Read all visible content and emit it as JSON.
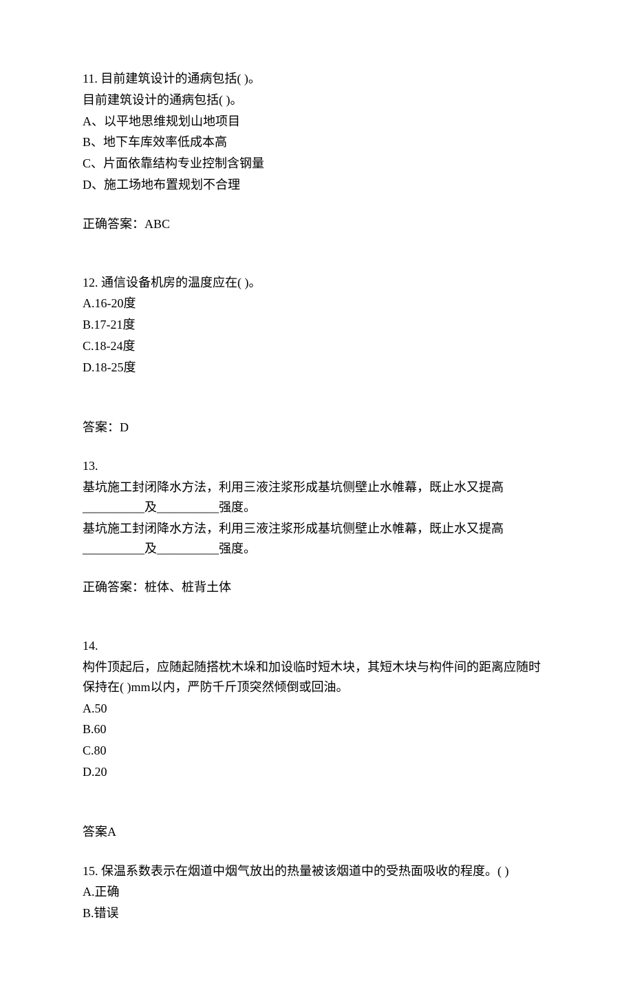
{
  "q11": {
    "number": "11.",
    "title": "目前建筑设计的通病包括(  )。",
    "repeat": "目前建筑设计的通病包括(  )。",
    "optA": "A、以平地思维规划山地项目",
    "optB": "B、地下车库效率低成本高",
    "optC": "C、片面依靠结构专业控制含钢量",
    "optD": "D、施工场地布置规划不合理",
    "answer": "正确答案：ABC"
  },
  "q12": {
    "number": "12.",
    "title": "通信设备机房的温度应在(  )。",
    "optA": "A.16-20度",
    "optB": "B.17-21度",
    "optC": "C.18-24度",
    "optD": "D.18-25度",
    "answer": "答案：D"
  },
  "q13": {
    "number": "13.",
    "line1": "基坑施工封闭降水方法，利用三液注浆形成基坑侧壁止水帷幕，既止水又提高__________及__________强度。",
    "line2": "基坑施工封闭降水方法，利用三液注浆形成基坑侧壁止水帷幕，既止水又提高__________及__________强度。",
    "answer": "正确答案：桩体、桩背土体"
  },
  "q14": {
    "number": "14.",
    "title": "构件顶起后，应随起随搭枕木垛和加设临时短木块，其短木块与构件间的距离应随时保持在(  )mm以内，严防千斤顶突然倾倒或回油。",
    "optA": "A.50",
    "optB": "B.60",
    "optC": "C.80",
    "optD": "D.20",
    "answer": "答案A"
  },
  "q15": {
    "number": "15.",
    "title": "保温系数表示在烟道中烟气放出的热量被该烟道中的受热面吸收的程度。(  )",
    "optA": "A.正确",
    "optB": "B.错误"
  }
}
